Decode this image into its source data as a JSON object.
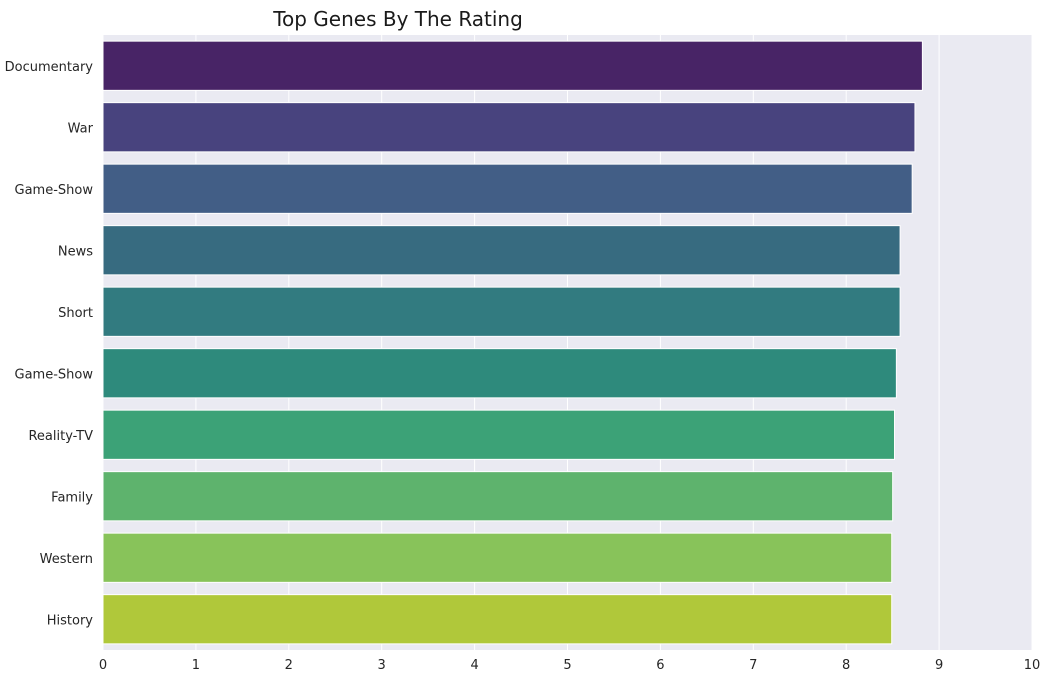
{
  "chart_data": {
    "type": "bar",
    "orientation": "horizontal",
    "title": "Top Genes By The Rating",
    "xlabel": "",
    "ylabel": "",
    "categories": [
      "Documentary",
      "War",
      "Game-Show",
      "News",
      "Short",
      "Game-Show",
      "Reality-TV",
      "Family",
      "Western",
      "History"
    ],
    "values": [
      8.82,
      8.74,
      8.71,
      8.58,
      8.58,
      8.54,
      8.52,
      8.5,
      8.49,
      8.49
    ],
    "xlim": [
      0,
      10
    ],
    "xticks": [
      "0",
      "1",
      "2",
      "3",
      "4",
      "5",
      "6",
      "7",
      "8",
      "9",
      "10"
    ],
    "grid": true,
    "legend": "none",
    "colors": [
      "#482466",
      "#48437e",
      "#425e86",
      "#376b80",
      "#327b80",
      "#2e8a7c",
      "#3ca277",
      "#5eb36d",
      "#88c35a",
      "#b0c83a"
    ],
    "background": "#eaeaf2"
  }
}
